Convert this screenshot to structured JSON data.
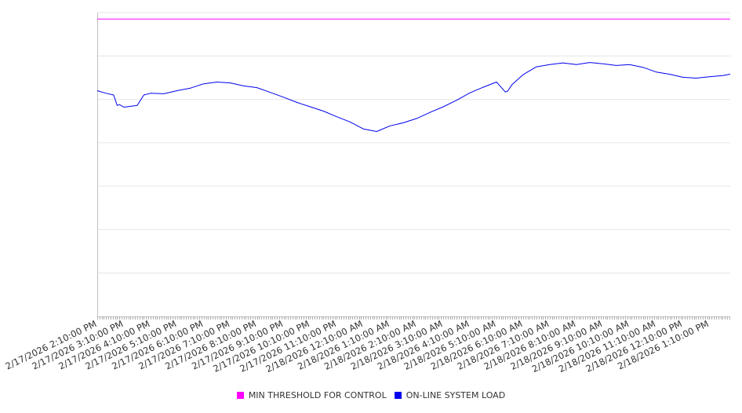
{
  "chart_data": {
    "type": "line",
    "title": "",
    "xlabel": "",
    "ylabel": "",
    "ylim": [
      0,
      7
    ],
    "y_gridlines": 7,
    "y_tick_labels_visible": false,
    "grid": true,
    "legend_position": "bottom",
    "x_tick_labels": [
      "2/17/2026 2:10:00 PM",
      "2/17/2026 3:10:00 PM",
      "2/17/2026 4:10:00 PM",
      "2/17/2026 5:10:00 PM",
      "2/17/2026 6:10:00 PM",
      "2/17/2026 7:10:00 PM",
      "2/17/2026 8:10:00 PM",
      "2/17/2026 9:10:00 PM",
      "2/17/2026 10:10:00 PM",
      "2/17/2026 11:10:00 PM",
      "2/18/2026 12:10:00 AM",
      "2/18/2026 1:10:00 AM",
      "2/18/2026 2:10:00 AM",
      "2/18/2026 3:10:00 AM",
      "2/18/2026 4:10:00 AM",
      "2/18/2026 5:10:00 AM",
      "2/18/2026 6:10:00 AM",
      "2/18/2026 7:10:00 AM",
      "2/18/2026 8:10:00 AM",
      "2/18/2026 9:10:00 AM",
      "2/18/2026 10:10:00 AM",
      "2/18/2026 11:10:00 AM",
      "2/18/2026 12:10:00 PM",
      "2/18/2026 1:10:00 PM"
    ],
    "x_range": [
      "2/17/2026 2:10:00 PM",
      "2/18/2026 1:57:00 PM"
    ],
    "series": [
      {
        "name": "MIN THRESHOLD FOR CONTROL",
        "color": "#ff00ff",
        "x": [
          "2/17/2026 2:10:00 PM",
          "2/18/2026 1:57:00 PM"
        ],
        "values": [
          6.85,
          6.85
        ]
      },
      {
        "name": "ON-LINE SYSTEM LOAD",
        "color": "#0000ee",
        "x": [
          "2/17/2026 2:10:00 PM",
          "2/17/2026 2:30:00 PM",
          "2/17/2026 2:47:00 PM",
          "2/17/2026 2:55:00 PM",
          "2/17/2026 3:00:00 PM",
          "2/17/2026 3:10:00 PM",
          "2/17/2026 3:40:00 PM",
          "2/17/2026 3:55:00 PM",
          "2/17/2026 4:10:00 PM",
          "2/17/2026 4:40:00 PM",
          "2/17/2026 5:10:00 PM",
          "2/17/2026 5:40:00 PM",
          "2/17/2026 6:10:00 PM",
          "2/17/2026 6:40:00 PM",
          "2/17/2026 7:10:00 PM",
          "2/17/2026 7:40:00 PM",
          "2/17/2026 8:10:00 PM",
          "2/17/2026 8:40:00 PM",
          "2/17/2026 9:10:00 PM",
          "2/17/2026 9:40:00 PM",
          "2/17/2026 10:10:00 PM",
          "2/17/2026 10:40:00 PM",
          "2/17/2026 11:10:00 PM",
          "2/17/2026 11:40:00 PM",
          "2/18/2026 12:10:00 AM",
          "2/18/2026 12:40:00 AM",
          "2/18/2026 1:10:00 AM",
          "2/18/2026 1:40:00 AM",
          "2/18/2026 2:10:00 AM",
          "2/18/2026 2:40:00 AM",
          "2/18/2026 3:10:00 AM",
          "2/18/2026 3:40:00 AM",
          "2/18/2026 4:10:00 AM",
          "2/18/2026 4:40:00 AM",
          "2/18/2026 5:10:00 AM",
          "2/18/2026 5:30:00 AM",
          "2/18/2026 5:35:00 AM",
          "2/18/2026 5:45:00 AM",
          "2/18/2026 6:10:00 AM",
          "2/18/2026 6:40:00 AM",
          "2/18/2026 7:10:00 AM",
          "2/18/2026 7:40:00 AM",
          "2/18/2026 8:10:00 AM",
          "2/18/2026 8:40:00 AM",
          "2/18/2026 9:10:00 AM",
          "2/18/2026 9:40:00 AM",
          "2/18/2026 10:10:00 AM",
          "2/18/2026 10:40:00 AM",
          "2/18/2026 11:10:00 AM",
          "2/18/2026 11:40:00 AM",
          "2/18/2026 12:10:00 PM",
          "2/18/2026 12:40:00 PM",
          "2/18/2026 1:10:00 PM",
          "2/18/2026 1:40:00 PM",
          "2/18/2026 1:57:00 PM"
        ],
        "values": [
          5.2,
          5.14,
          5.1,
          4.86,
          4.88,
          4.82,
          4.86,
          5.1,
          5.14,
          5.13,
          5.2,
          5.26,
          5.36,
          5.4,
          5.38,
          5.31,
          5.27,
          5.16,
          5.05,
          4.93,
          4.83,
          4.73,
          4.6,
          4.48,
          4.32,
          4.26,
          4.39,
          4.46,
          4.56,
          4.7,
          4.83,
          4.98,
          5.15,
          5.28,
          5.4,
          5.17,
          5.19,
          5.34,
          5.57,
          5.75,
          5.8,
          5.84,
          5.8,
          5.85,
          5.82,
          5.78,
          5.8,
          5.74,
          5.63,
          5.58,
          5.51,
          5.49,
          5.52,
          5.55,
          5.58
        ]
      }
    ]
  }
}
